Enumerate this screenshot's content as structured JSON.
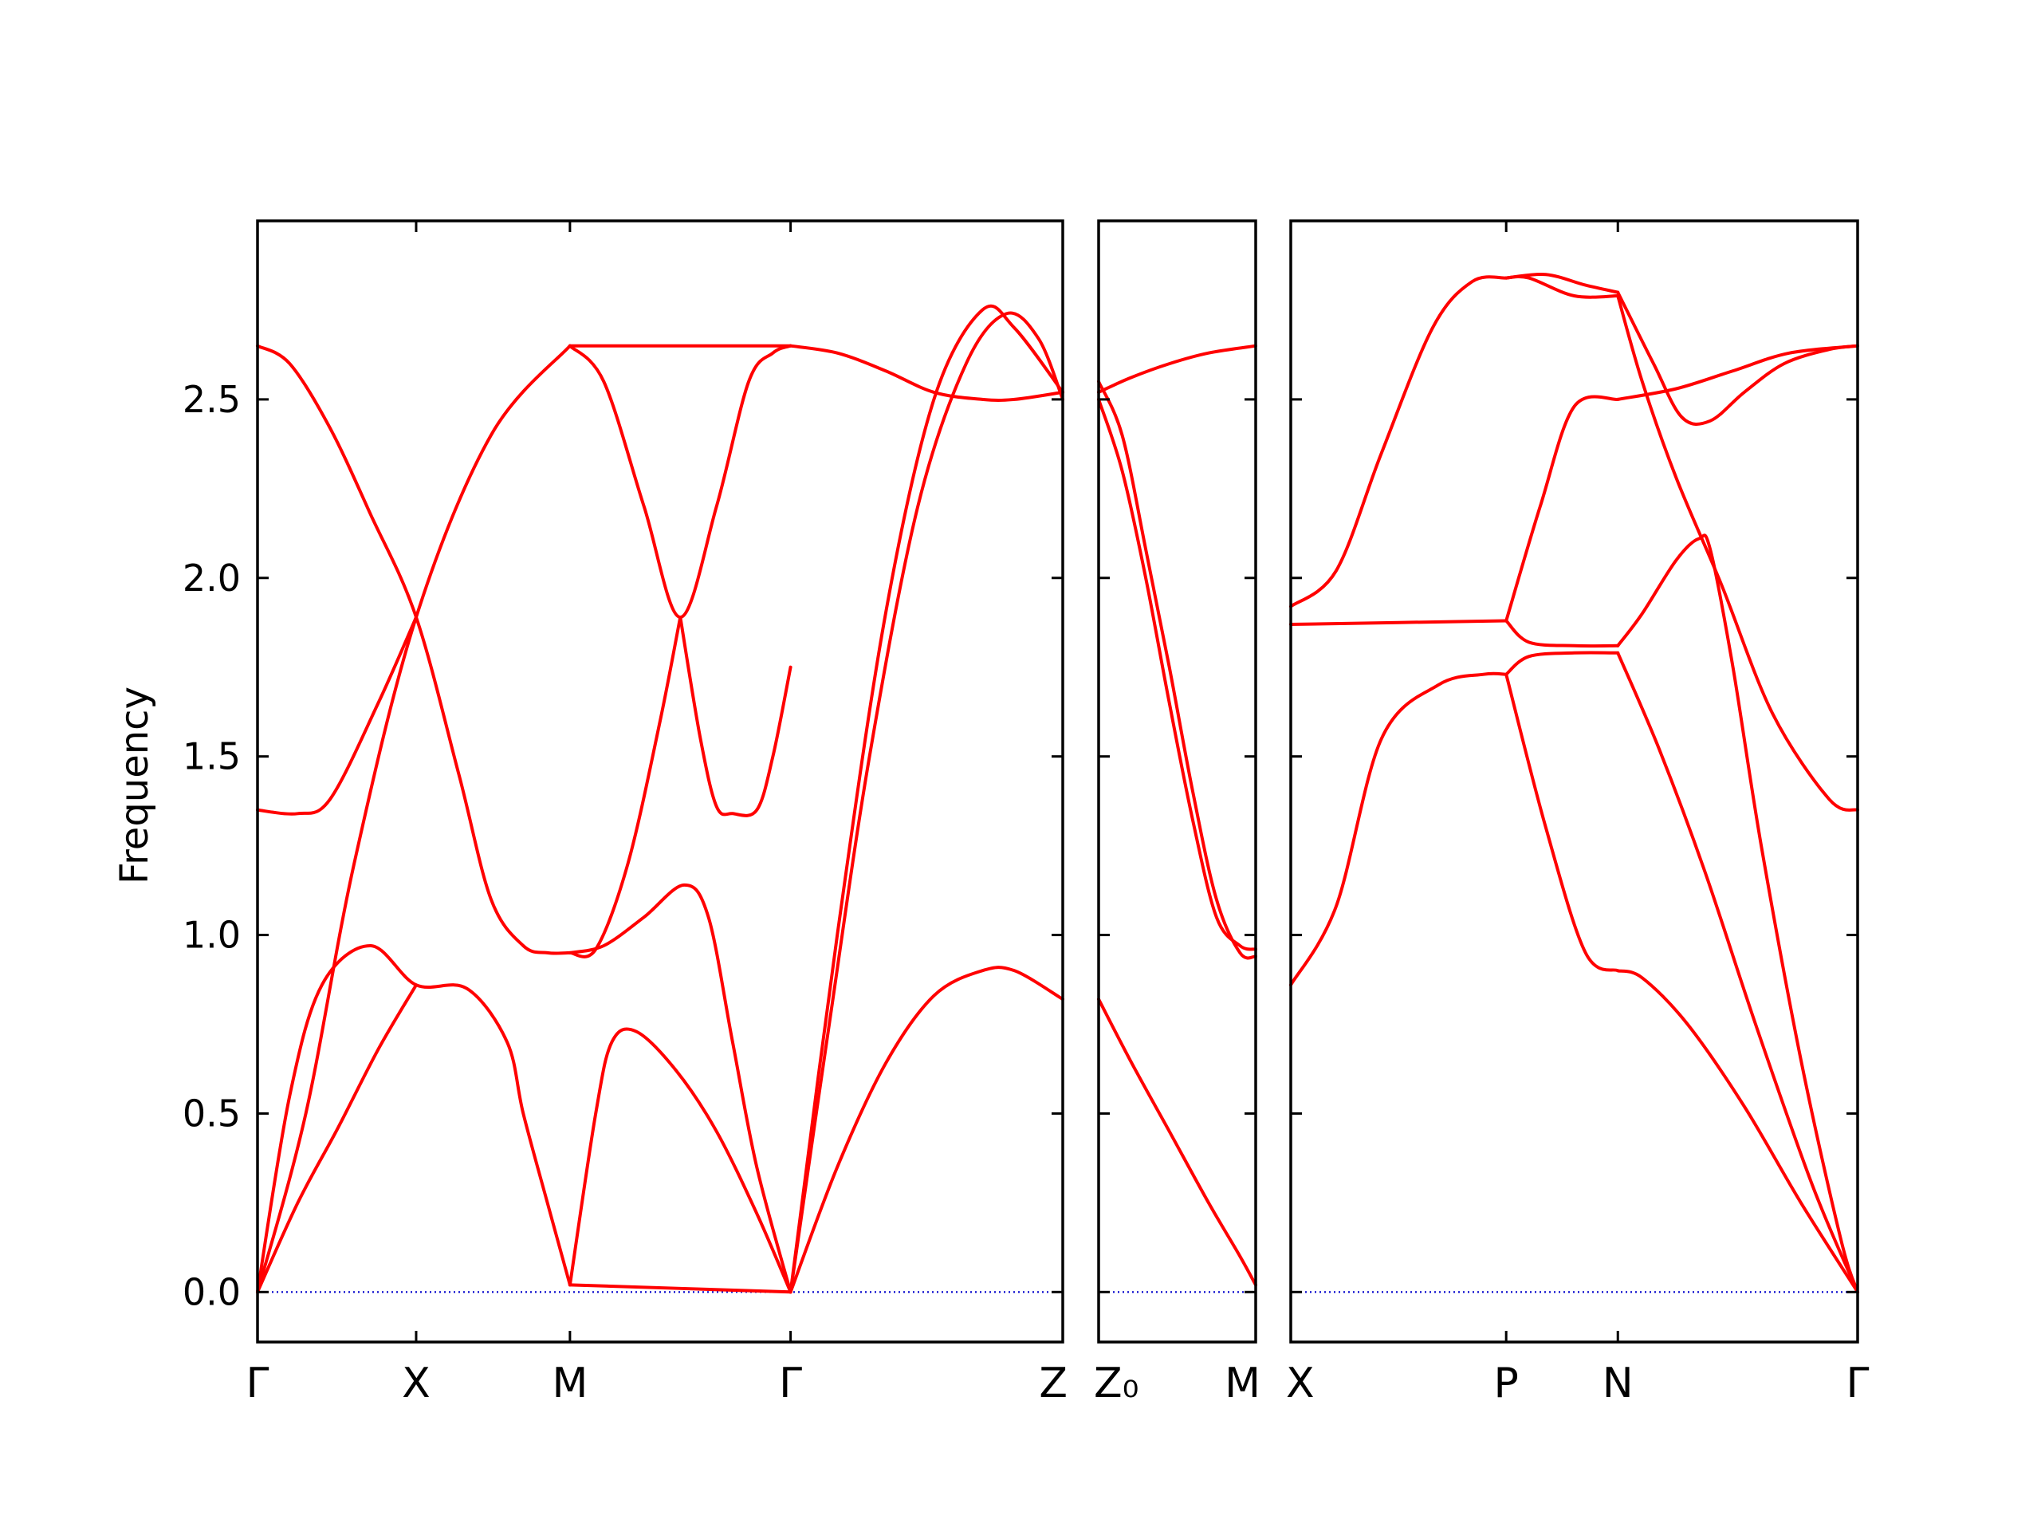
{
  "chart_data": {
    "type": "line",
    "ylabel": "Frequency",
    "ylim": [
      -0.14,
      3.0
    ],
    "yticks": [
      "0.0",
      "0.5",
      "1.0",
      "1.5",
      "2.0",
      "2.5"
    ],
    "band_color": "#ff0000",
    "zero_line_color": "#0000cc",
    "panels": [
      {
        "xlim": [
          0,
          1.0
        ],
        "ticks": [
          {
            "x": 0.0,
            "label": "Γ"
          },
          {
            "x": 0.197,
            "label": "X"
          },
          {
            "x": 0.388,
            "label": "M"
          },
          {
            "x": 0.662,
            "label": "Γ"
          },
          {
            "x": 1.0,
            "label": "Z"
          }
        ],
        "bands": [
          {
            "x": [
              0.0,
              0.06,
              0.12,
              0.197,
              0.29,
              0.388
            ],
            "y": [
              0.0,
              0.5,
              1.2,
              1.89,
              2.4,
              2.65
            ]
          },
          {
            "x": [
              0.0,
              0.04,
              0.08,
              0.14,
              0.197,
              0.26,
              0.31,
              0.33,
              0.36,
              0.388
            ],
            "y": [
              0.0,
              0.55,
              0.86,
              0.97,
              0.86,
              0.85,
              0.7,
              0.5,
              0.25,
              0.02
            ]
          },
          {
            "x": [
              0.0,
              0.05,
              0.1,
              0.15,
              0.197
            ],
            "y": [
              0.0,
              0.25,
              0.46,
              0.68,
              0.86
            ]
          },
          {
            "x": [
              0.0,
              0.04,
              0.09,
              0.14,
              0.197,
              0.25,
              0.29,
              0.33,
              0.36,
              0.388
            ],
            "y": [
              2.65,
              2.6,
              2.42,
              2.18,
              1.89,
              1.45,
              1.1,
              0.97,
              0.95,
              0.95
            ]
          },
          {
            "x": [
              0.0,
              0.05,
              0.09,
              0.15,
              0.197
            ],
            "y": [
              1.35,
              1.34,
              1.38,
              1.65,
              1.89
            ]
          },
          {
            "x": [
              0.388,
              0.662
            ],
            "y": [
              2.65,
              2.65
            ]
          },
          {
            "x": [
              0.388,
              0.43,
              0.48,
              0.525,
              0.57,
              0.61,
              0.64,
              0.662
            ],
            "y": [
              2.65,
              2.55,
              2.2,
              1.89,
              2.2,
              2.55,
              2.63,
              2.65
            ]
          },
          {
            "x": [
              0.388,
              0.42,
              0.46,
              0.5,
              0.525
            ],
            "y": [
              0.95,
              0.96,
              1.2,
              1.6,
              1.89
            ]
          },
          {
            "x": [
              0.525,
              0.55,
              0.57,
              0.59,
              0.62,
              0.64,
              0.662
            ],
            "y": [
              1.89,
              1.55,
              1.36,
              1.34,
              1.35,
              1.5,
              1.75
            ]
          },
          {
            "x": [
              0.388,
              0.43,
              0.48,
              0.53,
              0.56,
              0.59,
              0.62,
              0.662
            ],
            "y": [
              0.95,
              0.97,
              1.05,
              1.14,
              1.05,
              0.7,
              0.35,
              0.0
            ]
          },
          {
            "x": [
              0.388,
              0.42,
              0.44,
              0.47,
              0.52,
              0.57,
              0.62,
              0.662
            ],
            "y": [
              0.02,
              0.5,
              0.7,
              0.73,
              0.62,
              0.45,
              0.22,
              0.0
            ]
          },
          {
            "x": [
              0.388,
              0.662
            ],
            "y": [
              0.02,
              0.0
            ]
          },
          {
            "x": [
              0.662,
              0.72,
              0.78,
              0.84,
              0.9,
              0.94,
              1.0
            ],
            "y": [
              0.0,
              1.0,
              1.9,
              2.5,
              2.75,
              2.7,
              2.52
            ]
          },
          {
            "x": [
              0.662,
              0.71,
              0.76,
              0.82,
              0.88,
              0.93,
              0.97,
              1.0
            ],
            "y": [
              0.0,
              0.75,
              1.5,
              2.2,
              2.6,
              2.74,
              2.67,
              2.5
            ]
          },
          {
            "x": [
              0.662,
              0.72,
              0.78,
              0.84,
              0.9,
              0.94,
              1.0
            ],
            "y": [
              2.65,
              2.63,
              2.58,
              2.52,
              2.5,
              2.5,
              2.52
            ]
          },
          {
            "x": [
              0.662,
              0.72,
              0.78,
              0.84,
              0.9,
              0.94,
              1.0
            ],
            "y": [
              0.0,
              0.35,
              0.64,
              0.83,
              0.9,
              0.9,
              0.82
            ]
          }
        ]
      },
      {
        "xlim": [
          0,
          1.0
        ],
        "ticks": [
          {
            "x": 0.0,
            "label": "Z₀"
          },
          {
            "x": 1.0,
            "label": "M"
          }
        ],
        "bands": [
          {
            "x": [
              0.0,
              0.2,
              0.45,
              0.7,
              1.0
            ],
            "y": [
              2.52,
              2.56,
              2.6,
              2.63,
              2.65
            ]
          },
          {
            "x": [
              0.0,
              0.15,
              0.3,
              0.45,
              0.6,
              0.75,
              0.9,
              1.0
            ],
            "y": [
              2.55,
              2.4,
              2.08,
              1.75,
              1.4,
              1.1,
              0.95,
              0.94
            ]
          },
          {
            "x": [
              0.0,
              0.15,
              0.3,
              0.45,
              0.6,
              0.75,
              0.9,
              1.0
            ],
            "y": [
              2.5,
              2.3,
              2.0,
              1.65,
              1.32,
              1.05,
              0.97,
              0.96
            ]
          },
          {
            "x": [
              0.0,
              0.2,
              0.45,
              0.7,
              0.9,
              1.0
            ],
            "y": [
              0.82,
              0.65,
              0.45,
              0.25,
              0.1,
              0.02
            ]
          }
        ]
      },
      {
        "xlim": [
          0,
          1.0
        ],
        "ticks": [
          {
            "x": 0.0,
            "label": "X"
          },
          {
            "x": 0.38,
            "label": "P"
          },
          {
            "x": 0.577,
            "label": "N"
          },
          {
            "x": 1.0,
            "label": "Γ"
          }
        ],
        "bands": [
          {
            "x": [
              0.0,
              0.08,
              0.16,
              0.26,
              0.34,
              0.38
            ],
            "y": [
              0.86,
              1.08,
              1.55,
              1.7,
              1.73,
              1.73
            ]
          },
          {
            "x": [
              0.0,
              0.08,
              0.16,
              0.25,
              0.32,
              0.38
            ],
            "y": [
              1.92,
              2.02,
              2.35,
              2.7,
              2.83,
              2.84
            ]
          },
          {
            "x": [
              0.0,
              0.38
            ],
            "y": [
              1.87,
              1.88
            ]
          },
          {
            "x": [
              0.38,
              0.42,
              0.5,
              0.577
            ],
            "y": [
              1.88,
              1.82,
              1.81,
              1.81
            ]
          },
          {
            "x": [
              0.38,
              0.42,
              0.5,
              0.577
            ],
            "y": [
              1.73,
              1.78,
              1.79,
              1.79
            ]
          },
          {
            "x": [
              0.38,
              0.45,
              0.52,
              0.577
            ],
            "y": [
              2.84,
              2.85,
              2.82,
              2.8
            ]
          },
          {
            "x": [
              0.38,
              0.42,
              0.5,
              0.577
            ],
            "y": [
              2.84,
              2.84,
              2.79,
              2.79
            ]
          },
          {
            "x": [
              0.38,
              0.45,
              0.52,
              0.577
            ],
            "y": [
              1.73,
              1.3,
              0.95,
              0.9
            ]
          },
          {
            "x": [
              0.38,
              0.44,
              0.5,
              0.577
            ],
            "y": [
              1.88,
              2.2,
              2.48,
              2.5
            ]
          },
          {
            "x": [
              0.577,
              0.64,
              0.69,
              0.74,
              0.8,
              0.87,
              0.95,
              1.0
            ],
            "y": [
              2.8,
              2.6,
              2.45,
              2.44,
              2.52,
              2.6,
              2.64,
              2.65
            ]
          },
          {
            "x": [
              0.577,
              0.68,
              0.78,
              0.88,
              1.0
            ],
            "y": [
              2.5,
              2.53,
              2.58,
              2.63,
              2.65
            ]
          },
          {
            "x": [
              0.577,
              0.62,
              0.68,
              0.76,
              0.85,
              0.95,
              1.0
            ],
            "y": [
              2.79,
              2.55,
              2.28,
              1.98,
              1.62,
              1.38,
              1.35
            ]
          },
          {
            "x": [
              0.577,
              0.62,
              0.68,
              0.72,
              0.74,
              0.78,
              0.83,
              0.9,
              0.97,
              1.0
            ],
            "y": [
              1.81,
              1.9,
              2.05,
              2.11,
              2.08,
              1.75,
              1.25,
              0.65,
              0.15,
              0.0
            ]
          },
          {
            "x": [
              0.577,
              0.65,
              0.73,
              0.82,
              0.92,
              1.0
            ],
            "y": [
              1.79,
              1.52,
              1.18,
              0.75,
              0.3,
              0.0
            ]
          },
          {
            "x": [
              0.577,
              0.62,
              0.7,
              0.8,
              0.9,
              1.0
            ],
            "y": [
              0.9,
              0.88,
              0.75,
              0.52,
              0.25,
              0.0
            ]
          }
        ]
      }
    ]
  }
}
